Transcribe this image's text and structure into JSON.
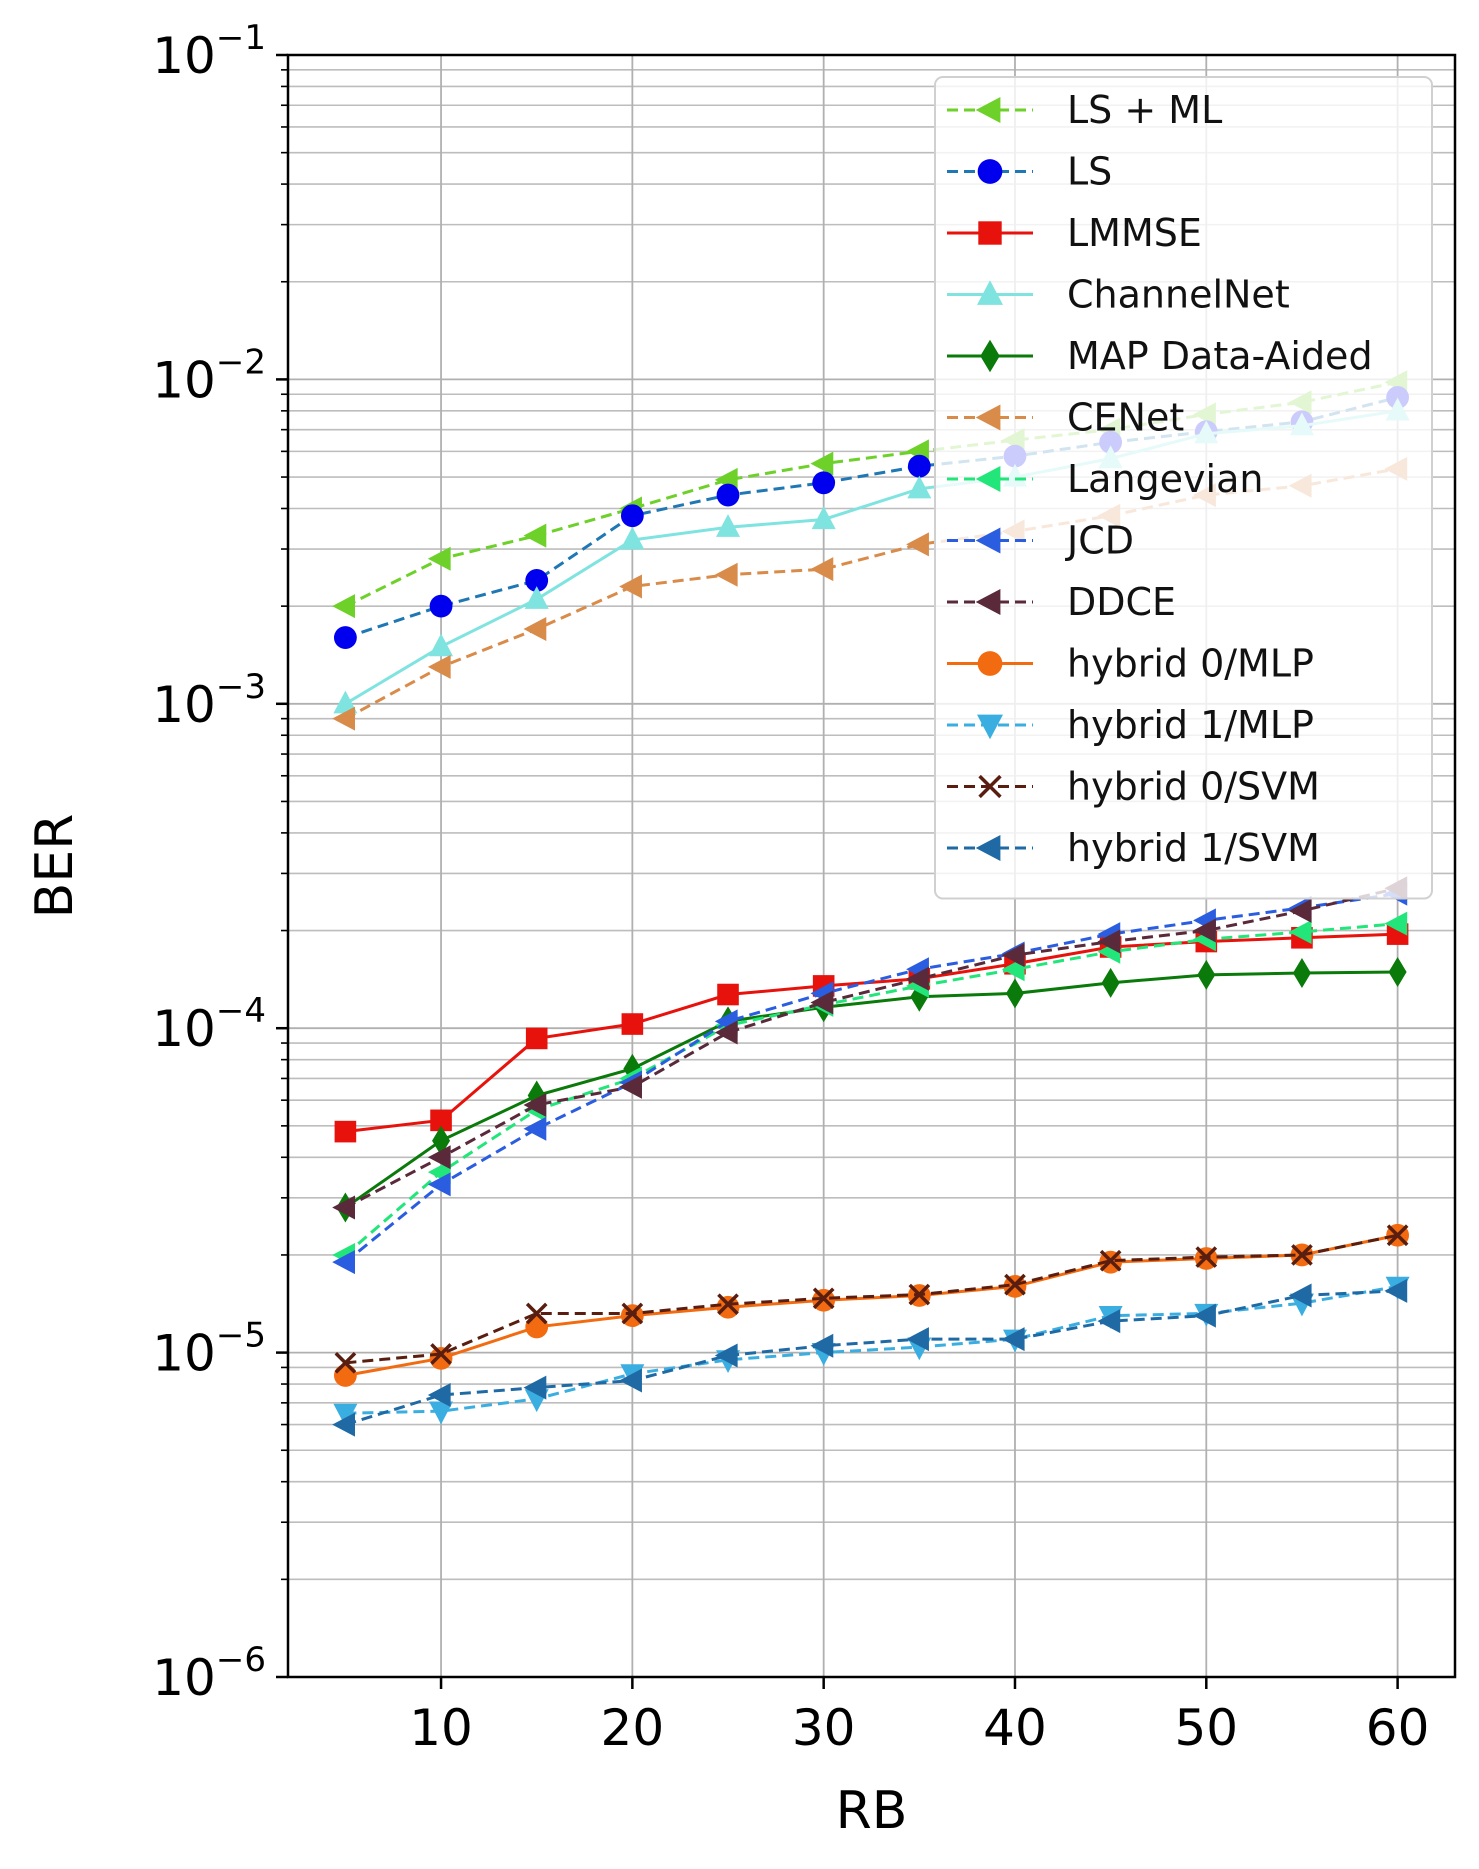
{
  "chart_data": {
    "type": "line",
    "xlabel": "RB",
    "ylabel": "BER",
    "y_scale": "log",
    "xlim": [
      2,
      63
    ],
    "ylim": [
      1e-06,
      0.1
    ],
    "x_ticks": [
      10,
      20,
      30,
      40,
      50,
      60
    ],
    "x_tick_labels": [
      "10",
      "20",
      "30",
      "40",
      "50",
      "60"
    ],
    "y_ticks": [
      1e-06,
      1e-05,
      0.0001,
      0.001,
      0.01,
      0.1
    ],
    "y_tick_labels": [
      {
        "base": "10",
        "exp": "−6"
      },
      {
        "base": "10",
        "exp": "−5"
      },
      {
        "base": "10",
        "exp": "−4"
      },
      {
        "base": "10",
        "exp": "−3"
      },
      {
        "base": "10",
        "exp": "−2"
      },
      {
        "base": "10",
        "exp": "−1"
      }
    ],
    "grid": true,
    "minor_grid_y": true,
    "legend_position": "top-right",
    "x": [
      5,
      10,
      15,
      20,
      25,
      30,
      35,
      40,
      45,
      50,
      55,
      60
    ],
    "series": [
      {
        "name": "LS + ML",
        "color": "#6dd12a",
        "dash": true,
        "marker": "triangle-left",
        "values": [
          0.002,
          0.0028,
          0.0033,
          0.004,
          0.0049,
          0.0055,
          0.006,
          0.0065,
          0.007,
          0.0078,
          0.0085,
          0.0098
        ]
      },
      {
        "name": "LS",
        "color": "#1f77b4",
        "marker_color": "#0000ee",
        "dash": true,
        "marker": "circle",
        "values": [
          0.0016,
          0.002,
          0.0024,
          0.0038,
          0.0044,
          0.0048,
          0.0054,
          0.0058,
          0.0064,
          0.0069,
          0.0074,
          0.0088
        ]
      },
      {
        "name": "LMMSE",
        "color": "#e8120c",
        "dash": false,
        "marker": "square",
        "values": [
          4.8e-05,
          5.2e-05,
          9.3e-05,
          0.000103,
          0.000127,
          0.000135,
          0.000142,
          0.000158,
          0.000178,
          0.000185,
          0.00019,
          0.000195
        ]
      },
      {
        "name": "ChannelNet",
        "color": "#7fe3e0",
        "dash": false,
        "marker": "triangle-up",
        "values": [
          0.001,
          0.0015,
          0.0021,
          0.0032,
          0.0035,
          0.0037,
          0.0046,
          0.005,
          0.0057,
          0.0068,
          0.0072,
          0.008
        ]
      },
      {
        "name": "MAP Data-Aided",
        "color": "#0a7a0a",
        "dash": false,
        "marker": "diamond",
        "values": [
          2.8e-05,
          4.5e-05,
          6.2e-05,
          7.5e-05,
          0.000105,
          0.000116,
          0.000125,
          0.000128,
          0.000138,
          0.000146,
          0.000148,
          0.000149
        ]
      },
      {
        "name": "CENet",
        "color": "#d98b4a",
        "dash": true,
        "marker": "triangle-left",
        "values": [
          0.0009,
          0.0013,
          0.0017,
          0.0023,
          0.0025,
          0.0026,
          0.0031,
          0.0034,
          0.0038,
          0.0044,
          0.0047,
          0.0053
        ]
      },
      {
        "name": "Langevian",
        "color": "#22e67a",
        "dash": true,
        "marker": "triangle-left",
        "values": [
          2e-05,
          3.6e-05,
          5.6e-05,
          7e-05,
          0.000102,
          0.000118,
          0.000135,
          0.000152,
          0.000172,
          0.000188,
          0.000198,
          0.00021
        ]
      },
      {
        "name": "JCD",
        "color": "#2a5de0",
        "dash": true,
        "marker": "triangle-left",
        "values": [
          1.9e-05,
          3.3e-05,
          4.9e-05,
          6.8e-05,
          0.000105,
          0.000128,
          0.000152,
          0.00017,
          0.000195,
          0.000215,
          0.000235,
          0.00026
        ]
      },
      {
        "name": "DDCE",
        "color": "#5a2a3a",
        "dash": true,
        "marker": "triangle-left",
        "values": [
          2.8e-05,
          4e-05,
          5.8e-05,
          6.6e-05,
          9.7e-05,
          0.00012,
          0.000142,
          0.000168,
          0.000185,
          0.0002,
          0.00023,
          0.00027
        ]
      },
      {
        "name": "hybrid 0/MLP",
        "color": "#f36b10",
        "dash": false,
        "marker": "circle",
        "values": [
          8.5e-06,
          9.6e-06,
          1.2e-05,
          1.3e-05,
          1.38e-05,
          1.45e-05,
          1.5e-05,
          1.6e-05,
          1.9e-05,
          1.95e-05,
          2e-05,
          2.3e-05
        ]
      },
      {
        "name": "hybrid 1/MLP",
        "color": "#3aaee0",
        "dash": true,
        "marker": "triangle-down",
        "values": [
          6.5e-06,
          6.6e-06,
          7.2e-06,
          8.6e-06,
          9.5e-06,
          1e-05,
          1.04e-05,
          1.1e-05,
          1.3e-05,
          1.32e-05,
          1.42e-05,
          1.6e-05
        ]
      },
      {
        "name": "hybrid 0/SVM",
        "color": "#5a1e10",
        "dash": true,
        "marker": "x",
        "values": [
          9.3e-06,
          9.9e-06,
          1.32e-05,
          1.32e-05,
          1.41e-05,
          1.47e-05,
          1.51e-05,
          1.62e-05,
          1.92e-05,
          1.97e-05,
          2e-05,
          2.3e-05
        ]
      },
      {
        "name": "hybrid 1/SVM",
        "color": "#1f6aa5",
        "dash": true,
        "marker": "triangle-left",
        "values": [
          6e-06,
          7.4e-06,
          7.8e-06,
          8.2e-06,
          9.8e-06,
          1.05e-05,
          1.1e-05,
          1.1e-05,
          1.25e-05,
          1.3e-05,
          1.5e-05,
          1.55e-05
        ]
      }
    ]
  }
}
